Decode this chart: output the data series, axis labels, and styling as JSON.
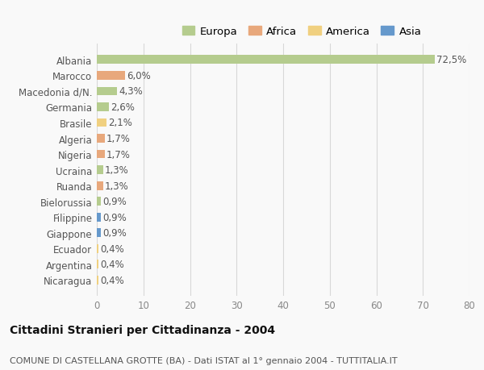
{
  "countries": [
    "Albania",
    "Marocco",
    "Macedonia d/N.",
    "Germania",
    "Brasile",
    "Algeria",
    "Nigeria",
    "Ucraina",
    "Ruanda",
    "Bielorussia",
    "Filippine",
    "Giappone",
    "Ecuador",
    "Argentina",
    "Nicaragua"
  ],
  "values": [
    72.5,
    6.0,
    4.3,
    2.6,
    2.1,
    1.7,
    1.7,
    1.3,
    1.3,
    0.9,
    0.9,
    0.9,
    0.4,
    0.4,
    0.4
  ],
  "labels": [
    "72,5%",
    "6,0%",
    "4,3%",
    "2,6%",
    "2,1%",
    "1,7%",
    "1,7%",
    "1,3%",
    "1,3%",
    "0,9%",
    "0,9%",
    "0,9%",
    "0,4%",
    "0,4%",
    "0,4%"
  ],
  "categories": [
    "Europa",
    "Africa",
    "Europa",
    "Europa",
    "America",
    "Africa",
    "Africa",
    "Europa",
    "Africa",
    "Europa",
    "Asia",
    "Asia",
    "America",
    "America",
    "America"
  ],
  "category_colors": {
    "Europa": "#b5cc8e",
    "Africa": "#e8a87c",
    "America": "#f0d080",
    "Asia": "#6699cc"
  },
  "legend_order": [
    "Europa",
    "Africa",
    "America",
    "Asia"
  ],
  "xlim": [
    0,
    80
  ],
  "xticks": [
    0,
    10,
    20,
    30,
    40,
    50,
    60,
    70,
    80
  ],
  "title": "Cittadini Stranieri per Cittadinanza - 2004",
  "subtitle": "COMUNE DI CASTELLANA GROTTE (BA) - Dati ISTAT al 1° gennaio 2004 - TUTTITALIA.IT",
  "background_color": "#f9f9f9",
  "grid_color": "#d8d8d8",
  "bar_height": 0.55,
  "title_fontsize": 10,
  "subtitle_fontsize": 8,
  "tick_label_fontsize": 8.5,
  "value_label_fontsize": 8.5,
  "legend_fontsize": 9.5
}
